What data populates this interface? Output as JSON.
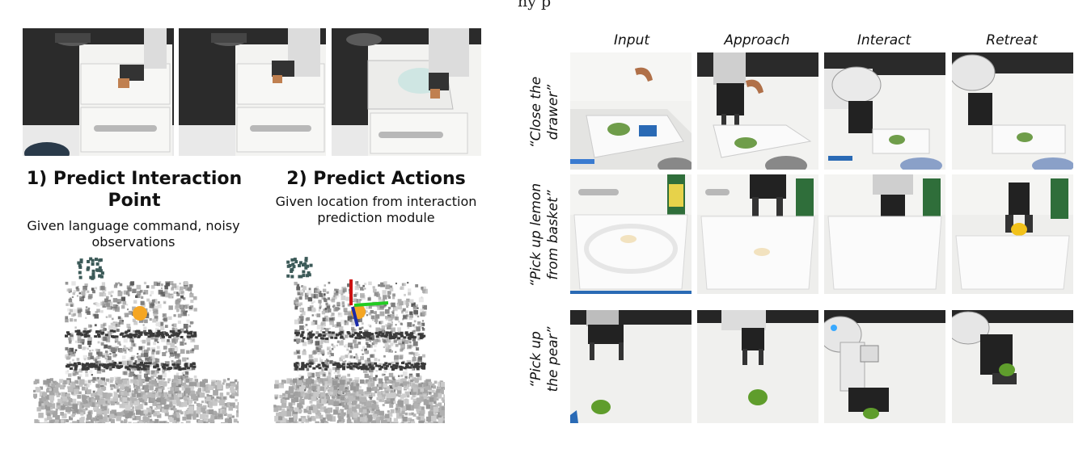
{
  "top_text": "ny          p",
  "left": {
    "module1": {
      "title": "1) Predict Interaction Point",
      "subtitle": "Given language command, noisy observations"
    },
    "module2": {
      "title": "2) Predict Actions",
      "subtitle": "Given location from interaction prediction module"
    }
  },
  "grid": {
    "columns": [
      "Input",
      "Approach",
      "Interact",
      "Retreat"
    ],
    "rows": [
      {
        "label_line1": "“Close the",
        "label_line2": "drawer”"
      },
      {
        "label_line1": "“Pick up lemon",
        "label_line2": "from basket”"
      },
      {
        "label_line1": "“Pick up",
        "label_line2": "the pear”"
      }
    ]
  },
  "colors": {
    "marker": "#f5a623",
    "axis_x": "#22cc22",
    "axis_y": "#1a2aa8",
    "axis_z": "#cc1111"
  }
}
